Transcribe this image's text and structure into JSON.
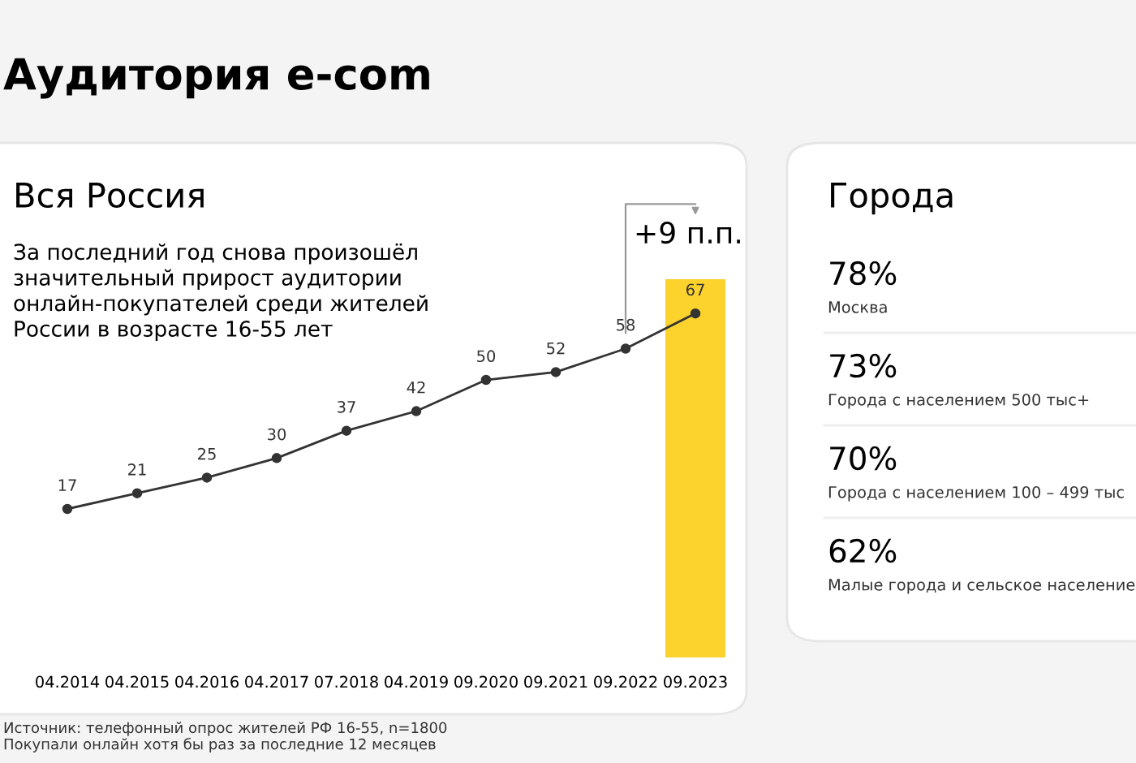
{
  "chart_data": [
    {
      "type": "line",
      "title": "Вся Россия",
      "subtitle": "За последний год снова произошёл\nзначительный прирост аудитории\nонлайн-покупателей среди жителей\nРоссии в возрасте 16-55 лет",
      "categories": [
        "04.2014",
        "04.2015",
        "04.2016",
        "04.2017",
        "07.2018",
        "04.2019",
        "09.2020",
        "09.2021",
        "09.2022",
        "09.2023"
      ],
      "series": [
        {
          "color": "#333333",
          "values": [
            17,
            21,
            25,
            30,
            37,
            42,
            50,
            52,
            58,
            67
          ]
        }
      ],
      "tick_labels": "x",
      "data_labels": true,
      "marker": "circle",
      "line_style": "solid",
      "grid": false,
      "legend": false,
      "bands": [
        {
          "axis": "x",
          "from": "09.2023",
          "to": "09.2023",
          "color": "#fcd22c"
        }
      ],
      "annotations": [
        "Аудитория e-com",
        {
          "text": "+9 п.п.",
          "x": "09.2023",
          "y": 67
        },
        "Источник: телефонный опрос жителей РФ 16-55, n=1800",
        "Покупали онлайн хотя бы раз за последние 12 месяцев"
      ]
    },
    {
      "type": "other",
      "title": "Города",
      "categories": [
        "Москва",
        "Города с населением 500 тыс+",
        "Города с населением 100 – 499 тыс",
        "Малые города и сельское население"
      ],
      "value_labels": [
        "78%",
        "73%",
        "70%",
        "62%"
      ]
    }
  ]
}
